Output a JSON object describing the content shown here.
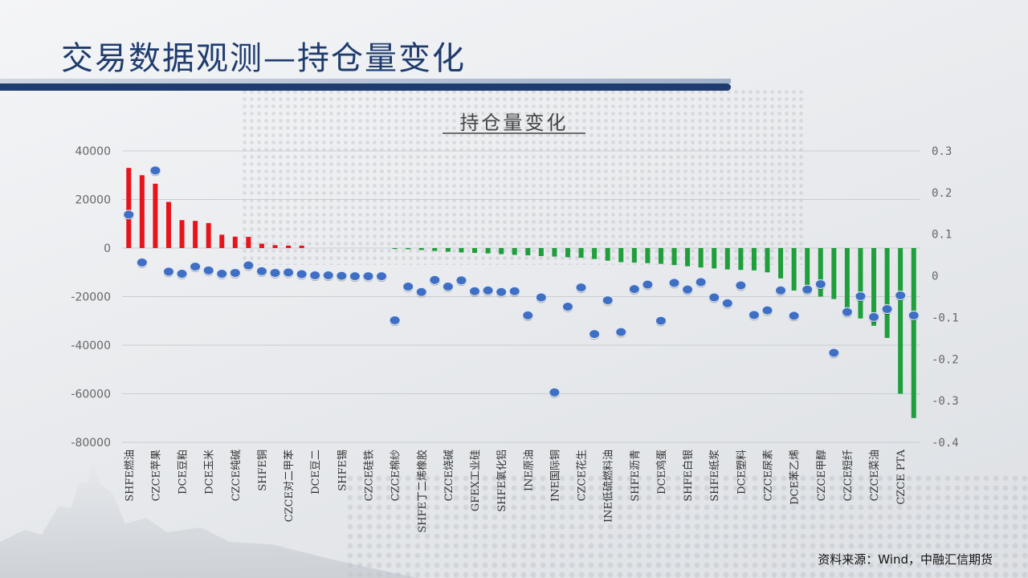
{
  "page": {
    "title": "交易数据观测—持仓量变化",
    "source": "资料来源：Wind，中融汇信期货"
  },
  "colors": {
    "positive": "#e8141b",
    "negative": "#1f9e3c",
    "marker": "#3f6fc4",
    "title": "#1f3c6e"
  },
  "chart_data": {
    "type": "bar",
    "title": "持仓量变化",
    "ylim": [
      -80000,
      40000
    ],
    "y2lim": [
      -0.4,
      0.3
    ],
    "y_ticks": [
      "40000",
      "20000",
      "0",
      "-20000",
      "-40000",
      "-60000",
      "-80000"
    ],
    "y2_ticks": [
      "0.3",
      "0.2",
      "0.1",
      "0",
      "-0.1",
      "-0.2",
      "-0.3",
      "-0.4"
    ],
    "categories": [
      "SHFE燃油",
      "",
      "CZCE苹果",
      "",
      "DCE豆粕",
      "",
      "DCE玉米",
      "",
      "CZCE纯碱",
      "",
      "SHFE铜",
      "",
      "CZCE对二甲苯",
      "",
      "DCE豆二",
      "",
      "SHFE锡",
      "",
      "CZCE硅铁",
      "",
      "CZCE棉纱",
      "",
      "SHFE丁二烯橡胶",
      "",
      "CZCE烧碱",
      "",
      "GFEX工业硅",
      "",
      "SHFE氧化铝",
      "",
      "INE原油",
      "",
      "INE国际铜",
      "",
      "CZCE花生",
      "",
      "INE低硫燃料油",
      "",
      "SHFE沥青",
      "",
      "DCE鸡蛋",
      "",
      "SHFE白银",
      "",
      "SHFE纸浆",
      "",
      "DCE塑料",
      "",
      "CZCE尿素",
      "",
      "DCE苯乙烯",
      "",
      "CZCE甲醇",
      "",
      "CZCE短纤",
      "",
      "CZCE菜油",
      "",
      "CZCE PTA",
      ""
    ],
    "series": [
      {
        "kind": "bar",
        "values": [
          33000,
          30000,
          26500,
          19000,
          11500,
          11200,
          10300,
          5500,
          4700,
          4600,
          1800,
          1200,
          1000,
          1000,
          0,
          0,
          0,
          0,
          0,
          0,
          -300,
          -500,
          -800,
          -1200,
          -1500,
          -1800,
          -2000,
          -2200,
          -2500,
          -2800,
          -3000,
          -3300,
          -3500,
          -3800,
          -4000,
          -4500,
          -5200,
          -5800,
          -6000,
          -6200,
          -6500,
          -7000,
          -7500,
          -8000,
          -8400,
          -8800,
          -9000,
          -9200,
          -10000,
          -12500,
          -17500,
          -18000,
          -20000,
          -21000,
          -28000,
          -29000,
          -32000,
          -37000,
          -60000,
          -70000
        ]
      },
      {
        "kind": "scatter",
        "values": [
          0.147,
          0.032,
          0.253,
          0.01,
          0.005,
          0.022,
          0.013,
          0.005,
          0.007,
          0.025,
          0.011,
          0.007,
          0.008,
          0.004,
          0.001,
          0.001,
          0.0,
          -0.001,
          -0.001,
          -0.001,
          -0.107,
          -0.026,
          -0.039,
          -0.01,
          -0.026,
          -0.011,
          -0.037,
          -0.035,
          -0.039,
          -0.037,
          -0.095,
          -0.052,
          -0.28,
          -0.074,
          -0.028,
          -0.14,
          -0.059,
          -0.135,
          -0.032,
          -0.021,
          -0.108,
          -0.017,
          -0.033,
          -0.015,
          -0.052,
          -0.066,
          -0.023,
          -0.094,
          -0.083,
          -0.035,
          -0.096,
          -0.033,
          -0.02,
          -0.185,
          -0.087,
          -0.049,
          -0.099,
          -0.08,
          -0.047,
          -0.095
        ]
      }
    ]
  }
}
